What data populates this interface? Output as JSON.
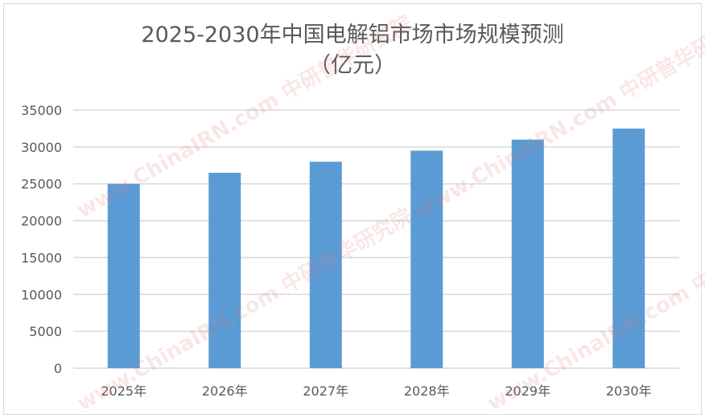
{
  "chart_data": {
    "type": "bar",
    "title": "2025-2030年中国电解铝市场市场规模预测",
    "subtitle": "（亿元）",
    "categories": [
      "2025年",
      "2026年",
      "2027年",
      "2028年",
      "2029年",
      "2030年"
    ],
    "values": [
      25000,
      26500,
      28000,
      29500,
      31000,
      32500
    ],
    "ylim": [
      0,
      35000
    ],
    "yticks": [
      "0",
      "5000",
      "10000",
      "15000",
      "20000",
      "25000",
      "30000",
      "35000"
    ],
    "grid": true,
    "bar_color": "#5b9bd5",
    "xlabel": "",
    "ylabel": ""
  },
  "watermark": "www.ChinaIRN.com 中研普华研究院"
}
